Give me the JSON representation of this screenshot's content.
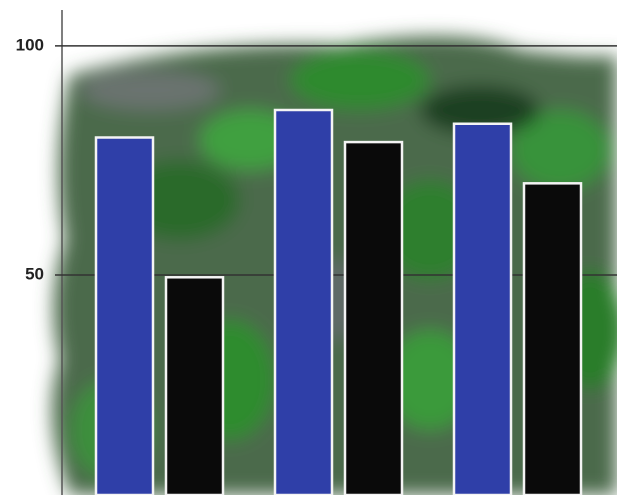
{
  "chart_data": {
    "type": "bar",
    "categories": [
      null,
      null,
      null
    ],
    "series": [
      {
        "color": "#2f3fa8",
        "values": [
          80,
          86,
          83
        ]
      },
      {
        "color": "#0a0a0a",
        "values": [
          49.5,
          79,
          70
        ]
      }
    ],
    "ylim": [
      2,
      110
    ],
    "yticks": [
      50,
      100
    ],
    "grid": true
  }
}
